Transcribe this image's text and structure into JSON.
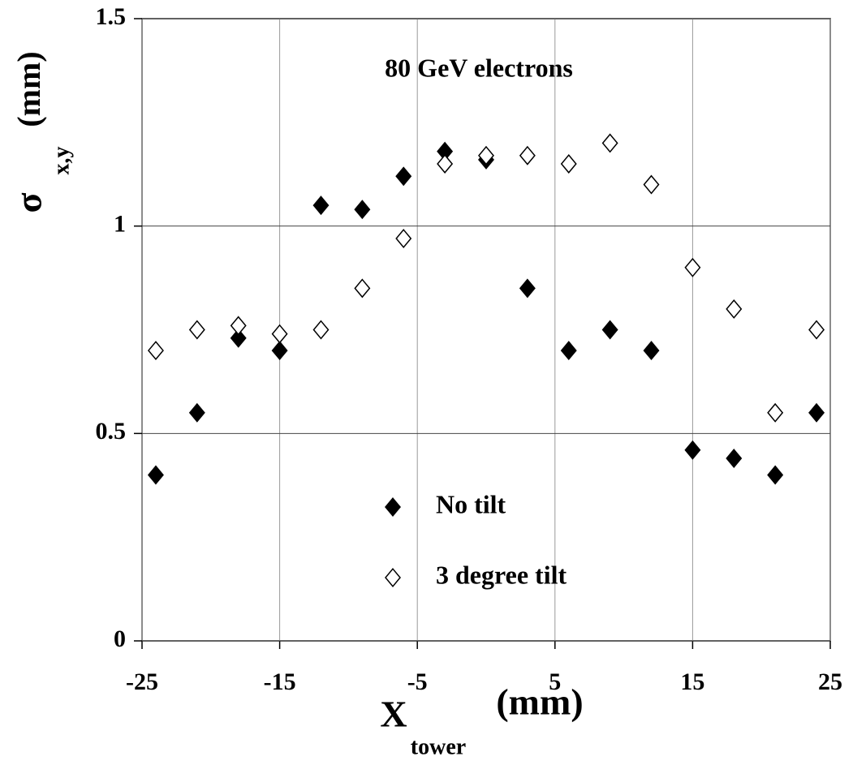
{
  "chart_data": {
    "type": "scatter",
    "annotation": "80 GeV electrons",
    "xlabel": {
      "symbol": "X",
      "subscript": "tower",
      "unit": "(mm)"
    },
    "ylabel": {
      "symbol": "σ",
      "subscript": "x,y",
      "unit": "(mm)"
    },
    "x": [
      -24,
      -21,
      -18,
      -15,
      -12,
      -9,
      -6,
      -3,
      0,
      3,
      6,
      9,
      12,
      15,
      18,
      21,
      24
    ],
    "series": [
      {
        "name": "No tilt",
        "color": "#000000",
        "filled": true,
        "values": [
          0.4,
          0.55,
          0.73,
          0.7,
          1.05,
          1.04,
          1.12,
          1.18,
          1.16,
          0.85,
          0.7,
          0.75,
          0.7,
          0.46,
          0.44,
          0.4,
          0.55
        ]
      },
      {
        "name": "3 degree tilt",
        "color": "#000000",
        "filled": false,
        "values": [
          0.7,
          0.75,
          0.76,
          0.74,
          0.75,
          0.85,
          0.97,
          1.15,
          1.17,
          1.17,
          1.15,
          1.2,
          1.1,
          0.9,
          0.8,
          0.55,
          0.75
        ]
      }
    ],
    "xlim": [
      -25,
      25
    ],
    "xticks": [
      -25,
      -15,
      -5,
      5,
      15,
      25
    ],
    "ylim": [
      0,
      1.5
    ],
    "yticks": [
      0,
      0.5,
      1,
      1.5
    ],
    "grid": true
  }
}
